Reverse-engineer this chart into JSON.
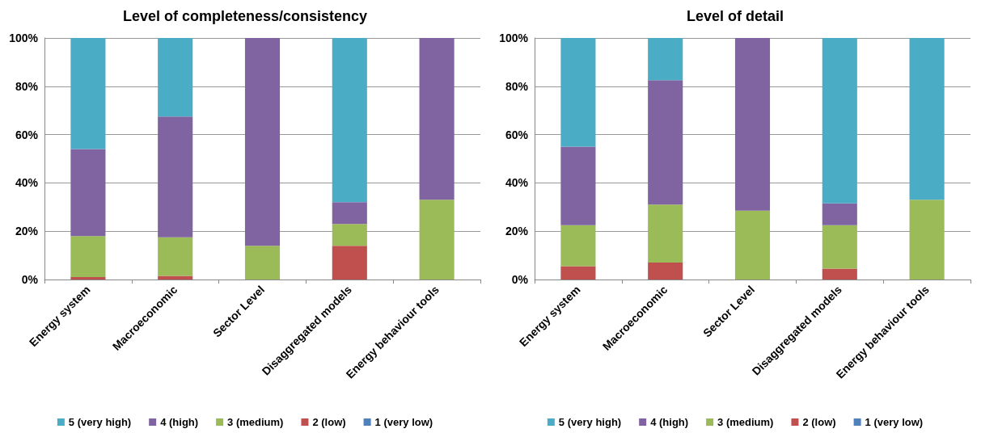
{
  "chart_data": [
    {
      "type": "bar",
      "title": "Level of completeness/consistency",
      "stacked": true,
      "grid": "y",
      "legend": "bottom",
      "categories": [
        "Energy system",
        "Macroeconomic",
        "Sector Level",
        "Disaggregated models",
        "Energy behaviour tools"
      ],
      "ylim": [
        0,
        100
      ],
      "yticks": [
        {
          "value": 0,
          "label": "0%"
        },
        {
          "value": 20,
          "label": "20%"
        },
        {
          "value": 40,
          "label": "40%"
        },
        {
          "value": 60,
          "label": "60%"
        },
        {
          "value": 80,
          "label": "80%"
        },
        {
          "value": 100,
          "label": "100%"
        }
      ],
      "series": [
        {
          "name": "1 (very low)",
          "color": "#4f81bd",
          "values": [
            0,
            0,
            0,
            0,
            0
          ]
        },
        {
          "name": "2 (low)",
          "color": "#c0504d",
          "values": [
            1,
            1.5,
            0,
            14,
            0
          ]
        },
        {
          "name": "3 (medium)",
          "color": "#9bbb59",
          "values": [
            17,
            16,
            14,
            9,
            33
          ]
        },
        {
          "name": "4 (high)",
          "color": "#8064a2",
          "values": [
            36,
            50,
            86,
            9,
            67
          ]
        },
        {
          "name": "5 (very high)",
          "color": "#4bacc6",
          "values": [
            46,
            32.5,
            0,
            68,
            0
          ]
        }
      ]
    },
    {
      "type": "bar",
      "title": "Level of detail",
      "stacked": true,
      "grid": "y",
      "legend": "bottom",
      "categories": [
        "Energy system",
        "Macroeconomic",
        "Sector Level",
        "Disaggregated models",
        "Energy behaviour tools"
      ],
      "ylim": [
        0,
        100
      ],
      "yticks": [
        {
          "value": 0,
          "label": "0%"
        },
        {
          "value": 20,
          "label": "20%"
        },
        {
          "value": 40,
          "label": "40%"
        },
        {
          "value": 60,
          "label": "60%"
        },
        {
          "value": 80,
          "label": "80%"
        },
        {
          "value": 100,
          "label": "100%"
        }
      ],
      "series": [
        {
          "name": "1 (very low)",
          "color": "#4f81bd",
          "values": [
            0,
            0,
            0,
            0,
            0
          ]
        },
        {
          "name": "2 (low)",
          "color": "#c0504d",
          "values": [
            5.5,
            7,
            0,
            4.5,
            0
          ]
        },
        {
          "name": "3 (medium)",
          "color": "#9bbb59",
          "values": [
            17,
            24,
            28.5,
            18,
            33
          ]
        },
        {
          "name": "4 (high)",
          "color": "#8064a2",
          "values": [
            32.5,
            51.5,
            71.5,
            9,
            0
          ]
        },
        {
          "name": "5 (very high)",
          "color": "#4bacc6",
          "values": [
            45,
            17.5,
            0,
            68.5,
            67
          ]
        }
      ]
    }
  ]
}
